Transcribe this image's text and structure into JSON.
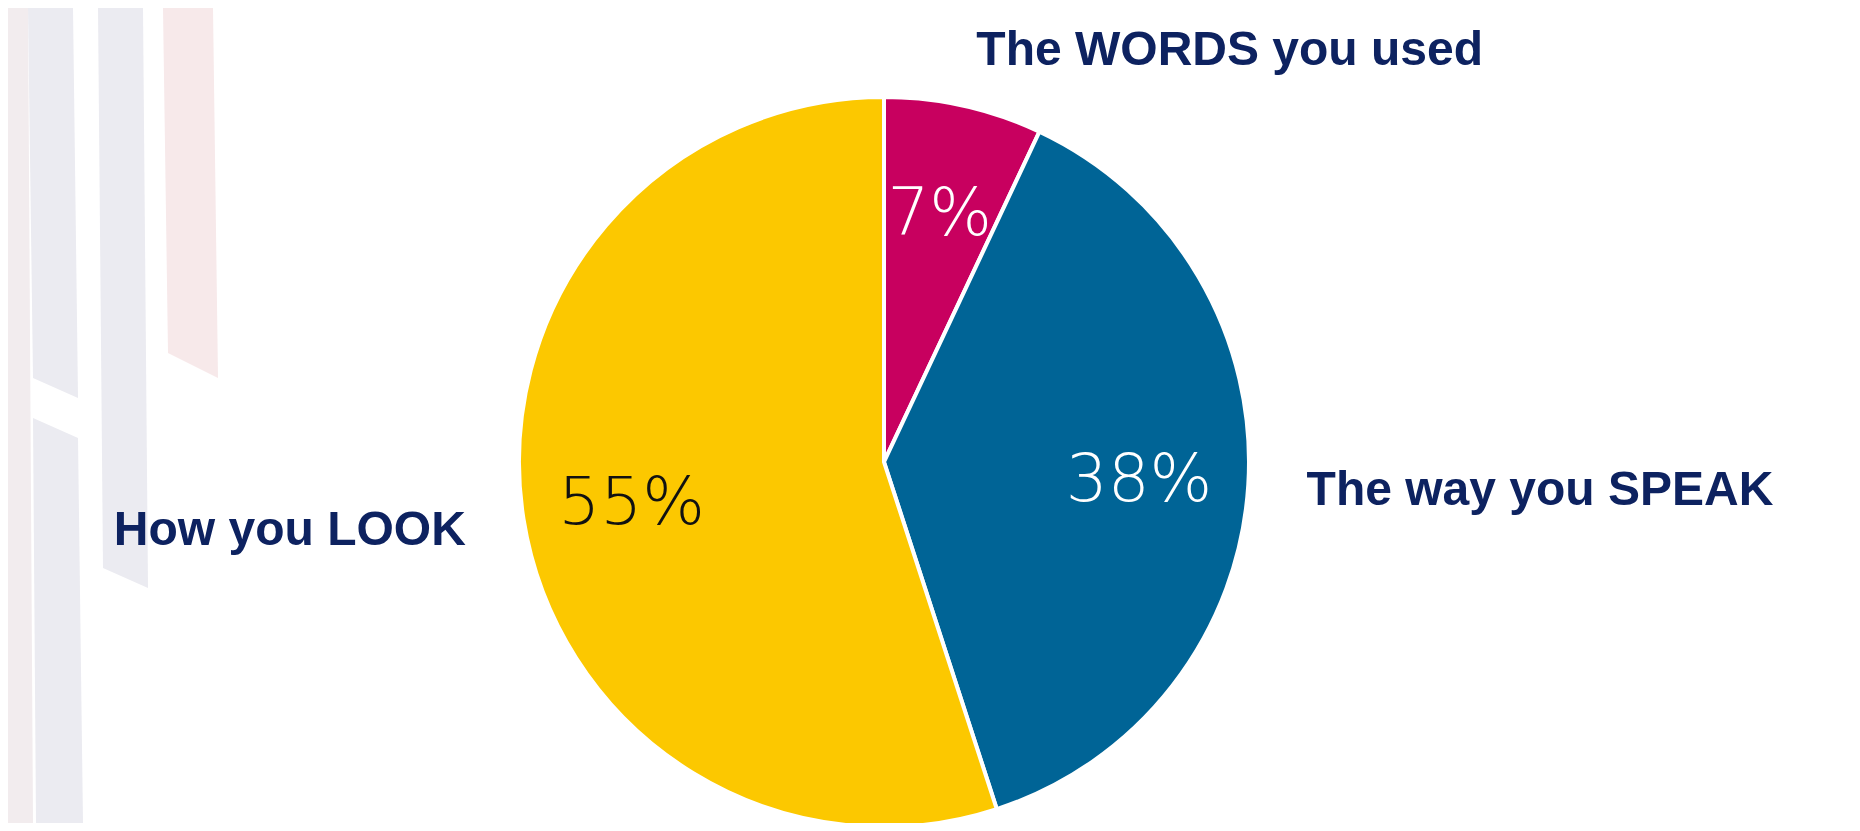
{
  "chart_data": {
    "type": "pie",
    "categories": [
      "The WORDS you used",
      "The way you SPEAK",
      "How you LOOK"
    ],
    "values": [
      7,
      38,
      55
    ],
    "colors": [
      "#c8005f",
      "#006496",
      "#fcc800"
    ],
    "value_labels": [
      "7%",
      "38%",
      "55%"
    ]
  }
}
